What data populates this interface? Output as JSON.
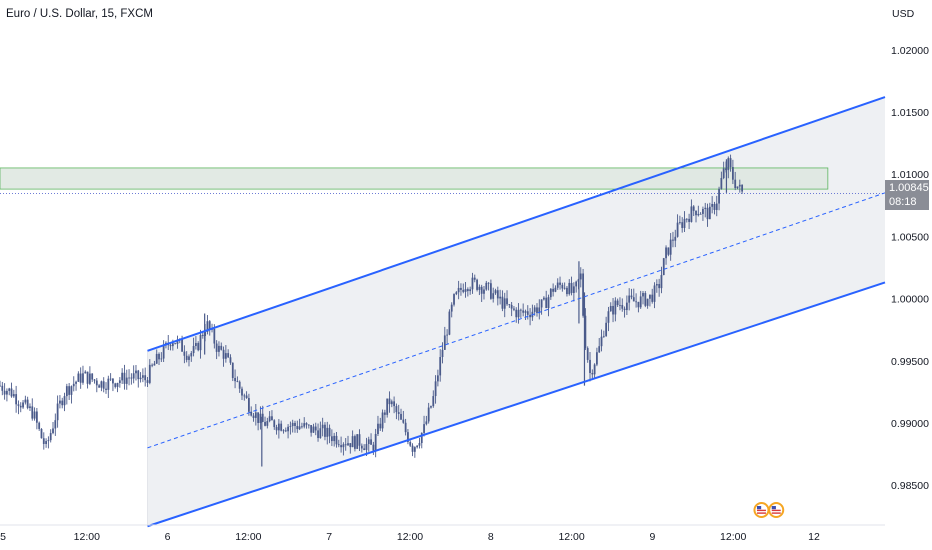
{
  "header": {
    "title": "Euro / U.S. Dollar, 15, FXCM",
    "currency": "USD"
  },
  "last_price": {
    "value": "1.00845",
    "countdown": "08:18"
  },
  "colors": {
    "candle": "#4a5a8a",
    "channel_line": "#2962ff",
    "channel_fill": "#eef0f3",
    "resistance_zone_fill": "#dde6df",
    "resistance_zone_border": "#5db55f",
    "price_dotted": "#5a6ad0"
  },
  "chart_data": {
    "type": "candlestick",
    "symbol": "EURUSD",
    "interval": "15",
    "y_axis": {
      "ticks": [
        "1.02000",
        "1.01500",
        "1.01000",
        "1.00500",
        "1.00000",
        "0.99500",
        "0.99000",
        "0.98500"
      ],
      "ylim": [
        0.9818,
        1.024
      ]
    },
    "x_axis": {
      "ticks": [
        "5",
        "12:00",
        "6",
        "12:00",
        "7",
        "12:00",
        "8",
        "12:00",
        "9",
        "12:00",
        "12"
      ],
      "xlim": [
        0,
        24
      ]
    },
    "price_path": [
      [
        0.0,
        0.993
      ],
      [
        0.3,
        0.9925
      ],
      [
        0.6,
        0.9915
      ],
      [
        0.9,
        0.9908
      ],
      [
        1.1,
        0.989
      ],
      [
        1.25,
        0.988
      ],
      [
        1.5,
        0.9905
      ],
      [
        1.75,
        0.9925
      ],
      [
        2.0,
        0.9932
      ],
      [
        2.25,
        0.9938
      ],
      [
        2.5,
        0.9935
      ],
      [
        2.75,
        0.9932
      ],
      [
        3.0,
        0.9933
      ],
      [
        3.25,
        0.9935
      ],
      [
        3.5,
        0.9937
      ],
      [
        3.75,
        0.9936
      ],
      [
        3.95,
        0.9935
      ],
      [
        4.2,
        0.9948
      ],
      [
        4.45,
        0.9958
      ],
      [
        4.65,
        0.9968
      ],
      [
        4.9,
        0.9962
      ],
      [
        5.1,
        0.9955
      ],
      [
        5.3,
        0.9958
      ],
      [
        5.6,
        0.998
      ],
      [
        5.9,
        0.996
      ],
      [
        6.1,
        0.9955
      ],
      [
        6.3,
        0.994
      ],
      [
        6.55,
        0.9925
      ],
      [
        6.85,
        0.991
      ],
      [
        7.1,
        0.99
      ],
      [
        7.4,
        0.99
      ],
      [
        7.75,
        0.9898
      ],
      [
        8.1,
        0.9898
      ],
      [
        8.4,
        0.9895
      ],
      [
        8.75,
        0.9893
      ],
      [
        9.1,
        0.9888
      ],
      [
        9.4,
        0.9885
      ],
      [
        9.75,
        0.9885
      ],
      [
        10.1,
        0.988
      ],
      [
        10.35,
        0.9903
      ],
      [
        10.55,
        0.9918
      ],
      [
        10.75,
        0.9908
      ],
      [
        11.0,
        0.9893
      ],
      [
        11.2,
        0.988
      ],
      [
        11.5,
        0.9895
      ],
      [
        11.75,
        0.992
      ],
      [
        12.0,
        0.996
      ],
      [
        12.3,
        0.9998
      ],
      [
        12.6,
        1.0012
      ],
      [
        12.9,
        1.0012
      ],
      [
        13.2,
        1.0008
      ],
      [
        13.5,
        1.0
      ],
      [
        13.8,
        0.9992
      ],
      [
        14.1,
        0.9988
      ],
      [
        14.4,
        0.999
      ],
      [
        14.75,
        0.9995
      ],
      [
        15.0,
        1.0008
      ],
      [
        15.3,
        1.0012
      ],
      [
        15.55,
        1.0003
      ],
      [
        15.75,
        1.0018
      ],
      [
        15.85,
        0.997
      ],
      [
        16.0,
        0.994
      ],
      [
        16.25,
        0.996
      ],
      [
        16.45,
        0.9985
      ],
      [
        16.7,
        0.9995
      ],
      [
        17.0,
        0.9997
      ],
      [
        17.3,
        0.9998
      ],
      [
        17.6,
        1.0
      ],
      [
        17.85,
        1.0008
      ],
      [
        18.05,
        1.0035
      ],
      [
        18.35,
        1.0055
      ],
      [
        18.6,
        1.0065
      ],
      [
        18.85,
        1.0072
      ],
      [
        19.05,
        1.007
      ],
      [
        19.25,
        1.0068
      ],
      [
        19.45,
        1.008
      ],
      [
        19.6,
        1.01
      ],
      [
        19.75,
        1.0108
      ],
      [
        19.9,
        1.0095
      ],
      [
        20.05,
        1.0088
      ],
      [
        20.15,
        1.0084
      ]
    ],
    "volatility_spikes": [
      {
        "x": 5.55,
        "high": 0.9988,
        "low": 0.9955
      },
      {
        "x": 7.1,
        "high": 0.9905,
        "low": 0.9865
      },
      {
        "x": 15.7,
        "high": 1.003,
        "low": 0.998
      },
      {
        "x": 15.85,
        "high": 1.0005,
        "low": 0.993
      },
      {
        "x": 19.7,
        "high": 1.0112,
        "low": 1.0085
      }
    ],
    "regression_channel": {
      "x_start": 4.0,
      "x_end": 24.0,
      "upper": [
        0.9958,
        1.0162
      ],
      "middle": [
        0.988,
        1.0085
      ],
      "lower": [
        0.9817,
        1.0013
      ]
    },
    "resistance_zone": {
      "x_start": 0.0,
      "x_end": 22.45,
      "top": 1.0105,
      "bottom": 1.0088
    },
    "last_price_value": 1.00845,
    "event_markers": [
      {
        "x": 20.65,
        "label": "US"
      },
      {
        "x": 21.05,
        "label": "US"
      }
    ]
  }
}
